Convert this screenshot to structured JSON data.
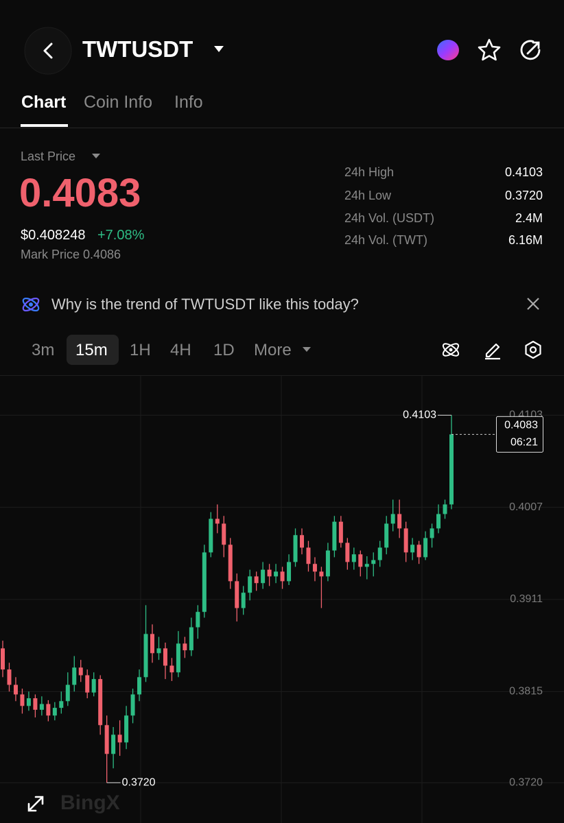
{
  "header": {
    "symbol": "TWTUSDT"
  },
  "tabs": [
    "Chart",
    "Coin Info",
    "Info"
  ],
  "price": {
    "label": "Last Price",
    "value": "0.4083",
    "usd": "$0.408248",
    "change": "+7.08%",
    "mark": "Mark Price 0.4086"
  },
  "stats": [
    {
      "label": "24h High",
      "value": "0.4103"
    },
    {
      "label": "24h Low",
      "value": "0.3720"
    },
    {
      "label": "24h Vol. (USDT)",
      "value": "2.4M"
    },
    {
      "label": "24h Vol. (TWT)",
      "value": "6.16M"
    }
  ],
  "banner": "Why is the trend of TWTUSDT like this today?",
  "intervals": [
    "3m",
    "15m",
    "1H",
    "4H",
    "1D",
    "More"
  ],
  "watermark": "BingX",
  "chart_data": {
    "type": "candlestick",
    "up_color": "#2ebd85",
    "down_color": "#f0616d",
    "grid": true,
    "ylim": [
      0.3678,
      0.4144
    ],
    "yticks": [
      0.4103,
      0.4007,
      0.3911,
      0.3815,
      {
        "value": 0.372,
        "label": "0.3720"
      }
    ],
    "high_marker": 0.4103,
    "low_marker": {
      "value": 0.372,
      "label": "0.3720"
    },
    "last_price": 0.4083,
    "countdown": "06:21",
    "candles": [
      [
        0.386,
        0.3868,
        0.383,
        0.3838
      ],
      [
        0.3838,
        0.3845,
        0.3815,
        0.3822
      ],
      [
        0.3822,
        0.383,
        0.3805,
        0.3812
      ],
      [
        0.3812,
        0.3818,
        0.3792,
        0.38
      ],
      [
        0.38,
        0.3815,
        0.3795,
        0.3808
      ],
      [
        0.3808,
        0.3812,
        0.3788,
        0.3796
      ],
      [
        0.3796,
        0.381,
        0.379,
        0.3802
      ],
      [
        0.3802,
        0.3806,
        0.3784,
        0.379
      ],
      [
        0.379,
        0.3804,
        0.3785,
        0.3798
      ],
      [
        0.3798,
        0.3815,
        0.3792,
        0.3805
      ],
      [
        0.3805,
        0.3835,
        0.38,
        0.3822
      ],
      [
        0.3822,
        0.3852,
        0.3815,
        0.384
      ],
      [
        0.384,
        0.3848,
        0.3825,
        0.3832
      ],
      [
        0.3832,
        0.3838,
        0.3808,
        0.3814
      ],
      [
        0.3814,
        0.3835,
        0.381,
        0.3828
      ],
      [
        0.3828,
        0.3832,
        0.377,
        0.378
      ],
      [
        0.378,
        0.379,
        0.372,
        0.375
      ],
      [
        0.375,
        0.3778,
        0.3735,
        0.377
      ],
      [
        0.377,
        0.3785,
        0.3748,
        0.3762
      ],
      [
        0.3762,
        0.38,
        0.3755,
        0.379
      ],
      [
        0.379,
        0.3818,
        0.3782,
        0.3812
      ],
      [
        0.3812,
        0.3838,
        0.3805,
        0.383
      ],
      [
        0.383,
        0.3905,
        0.3825,
        0.3875
      ],
      [
        0.3875,
        0.3885,
        0.3845,
        0.3855
      ],
      [
        0.3855,
        0.3872,
        0.3848,
        0.386
      ],
      [
        0.386,
        0.3866,
        0.3828,
        0.3842
      ],
      [
        0.3842,
        0.385,
        0.3826,
        0.3835
      ],
      [
        0.3835,
        0.3878,
        0.383,
        0.3865
      ],
      [
        0.3865,
        0.3872,
        0.385,
        0.3858
      ],
      [
        0.3858,
        0.3892,
        0.3852,
        0.3882
      ],
      [
        0.3882,
        0.3905,
        0.387,
        0.3898
      ],
      [
        0.3898,
        0.3968,
        0.3892,
        0.396
      ],
      [
        0.396,
        0.4002,
        0.3955,
        0.3995
      ],
      [
        0.3995,
        0.401,
        0.398,
        0.399
      ],
      [
        0.399,
        0.3998,
        0.3955,
        0.3968
      ],
      [
        0.3968,
        0.3975,
        0.3922,
        0.393
      ],
      [
        0.393,
        0.3938,
        0.3888,
        0.3902
      ],
      [
        0.3902,
        0.3925,
        0.3895,
        0.3918
      ],
      [
        0.3918,
        0.3942,
        0.391,
        0.3935
      ],
      [
        0.3935,
        0.394,
        0.392,
        0.3928
      ],
      [
        0.3928,
        0.395,
        0.3922,
        0.3942
      ],
      [
        0.3942,
        0.3948,
        0.3925,
        0.3935
      ],
      [
        0.3935,
        0.3948,
        0.3928,
        0.394
      ],
      [
        0.394,
        0.3945,
        0.3922,
        0.393
      ],
      [
        0.393,
        0.3958,
        0.3926,
        0.395
      ],
      [
        0.395,
        0.3985,
        0.3945,
        0.3978
      ],
      [
        0.3978,
        0.3985,
        0.3958,
        0.3965
      ],
      [
        0.3965,
        0.3972,
        0.394,
        0.3948
      ],
      [
        0.3948,
        0.3955,
        0.393,
        0.394
      ],
      [
        0.394,
        0.3945,
        0.3902,
        0.3935
      ],
      [
        0.3935,
        0.397,
        0.393,
        0.3962
      ],
      [
        0.3962,
        0.3998,
        0.3955,
        0.3992
      ],
      [
        0.3992,
        0.3998,
        0.3965,
        0.397
      ],
      [
        0.397,
        0.3975,
        0.3942,
        0.395
      ],
      [
        0.395,
        0.3965,
        0.3942,
        0.3958
      ],
      [
        0.3958,
        0.3962,
        0.3935,
        0.3945
      ],
      [
        0.3945,
        0.3956,
        0.3932,
        0.3948
      ],
      [
        0.3948,
        0.396,
        0.3935,
        0.3952
      ],
      [
        0.3952,
        0.3972,
        0.3945,
        0.3965
      ],
      [
        0.3965,
        0.3998,
        0.3958,
        0.399
      ],
      [
        0.399,
        0.4015,
        0.3982,
        0.4
      ],
      [
        0.4,
        0.4015,
        0.3975,
        0.3985
      ],
      [
        0.3985,
        0.3992,
        0.395,
        0.396
      ],
      [
        0.396,
        0.3975,
        0.3952,
        0.3968
      ],
      [
        0.3968,
        0.3972,
        0.3948,
        0.3955
      ],
      [
        0.3955,
        0.3982,
        0.3952,
        0.3975
      ],
      [
        0.3975,
        0.399,
        0.3965,
        0.3985
      ],
      [
        0.3985,
        0.401,
        0.398,
        0.4
      ],
      [
        0.4,
        0.4015,
        0.3995,
        0.401
      ],
      [
        0.401,
        0.4103,
        0.4005,
        0.4083
      ]
    ]
  }
}
